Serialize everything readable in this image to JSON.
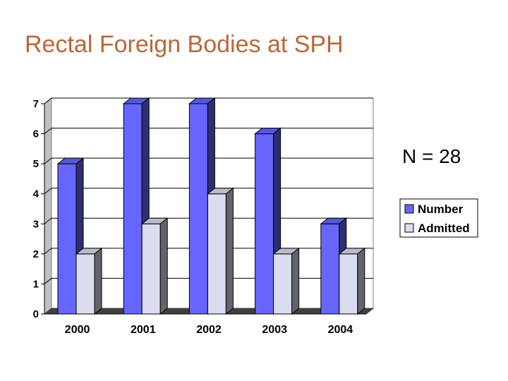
{
  "slide": {
    "title": "Rectal Foreign Bodies at SPH",
    "annotation": "N = 28"
  },
  "chart_data": {
    "type": "bar",
    "categories": [
      "2000",
      "2001",
      "2002",
      "2003",
      "2004"
    ],
    "series": [
      {
        "name": "Number",
        "values": [
          5,
          7,
          7,
          6,
          3
        ],
        "color": "#6666ff"
      },
      {
        "name": "Admitted",
        "values": [
          2,
          3,
          4,
          2,
          2
        ],
        "color": "#dcdcf0"
      }
    ],
    "ylim": [
      0,
      7
    ],
    "yticks": [
      "0",
      "1",
      "2",
      "3",
      "4",
      "5",
      "6",
      "7"
    ],
    "grid": true,
    "legend": "right",
    "style": "3d-column"
  }
}
